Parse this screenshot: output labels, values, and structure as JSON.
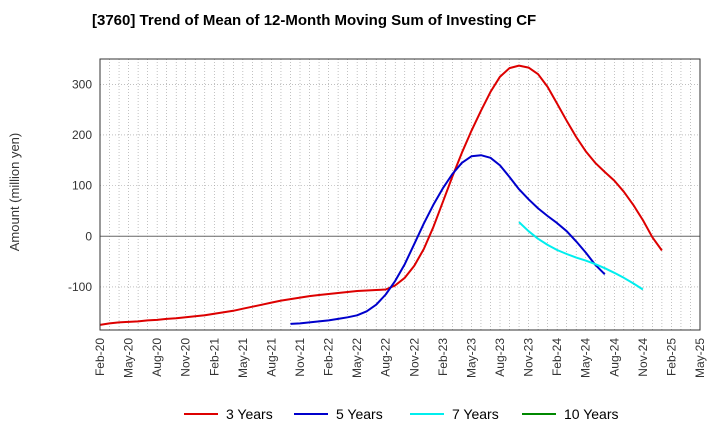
{
  "chart_data": {
    "type": "line",
    "title": "[3760]  Trend of Mean of 12-Month Moving Sum of Investing CF",
    "xlabel": "",
    "ylabel": "Amount (million yen)",
    "ylim": [
      -185,
      350
    ],
    "yticks": [
      -100,
      0,
      100,
      200,
      300
    ],
    "ytick_labels": [
      "-100",
      "0",
      "100",
      "200",
      "300"
    ],
    "x_start": "Feb-20",
    "x_months": 63,
    "xtick_labels": [
      "Feb-20",
      "May-20",
      "Aug-20",
      "Nov-20",
      "Feb-21",
      "May-21",
      "Aug-21",
      "Nov-21",
      "Feb-22",
      "May-22",
      "Aug-22",
      "Nov-22",
      "Feb-23",
      "May-23",
      "Aug-23",
      "Nov-23",
      "Feb-24",
      "May-24",
      "Aug-24",
      "Nov-24",
      "Feb-25",
      "May-25"
    ],
    "grid": true,
    "legend_position": "bottom",
    "series": [
      {
        "name": "3 Years",
        "color": "#dd0000",
        "start_index": 0,
        "values": [
          -175,
          -172,
          -170,
          -169,
          -168,
          -166,
          -165,
          -163,
          -162,
          -160,
          -158,
          -156,
          -153,
          -150,
          -147,
          -143,
          -139,
          -135,
          -131,
          -127,
          -124,
          -121,
          -118,
          -116,
          -114,
          -112,
          -110,
          -108,
          -107,
          -106,
          -105,
          -97,
          -82,
          -58,
          -25,
          18,
          68,
          118,
          165,
          208,
          248,
          285,
          315,
          332,
          337,
          333,
          320,
          295,
          262,
          228,
          196,
          168,
          145,
          127,
          110,
          88,
          62,
          32,
          -2,
          -28
        ]
      },
      {
        "name": "5 Years",
        "color": "#0000cc",
        "start_index": 20,
        "values": [
          -173,
          -172,
          -170,
          -168,
          -166,
          -163,
          -160,
          -156,
          -148,
          -135,
          -115,
          -88,
          -55,
          -15,
          25,
          62,
          95,
          123,
          145,
          158,
          160,
          155,
          140,
          117,
          93,
          73,
          55,
          40,
          26,
          10,
          -10,
          -32,
          -56,
          -75
        ]
      },
      {
        "name": "7 Years",
        "color": "#00eeee",
        "start_index": 44,
        "values": [
          28,
          10,
          -5,
          -17,
          -27,
          -35,
          -42,
          -48,
          -55,
          -63,
          -72,
          -82,
          -93,
          -105
        ]
      },
      {
        "name": "10 Years",
        "color": "#008800",
        "start_index": 0,
        "values": []
      }
    ]
  }
}
